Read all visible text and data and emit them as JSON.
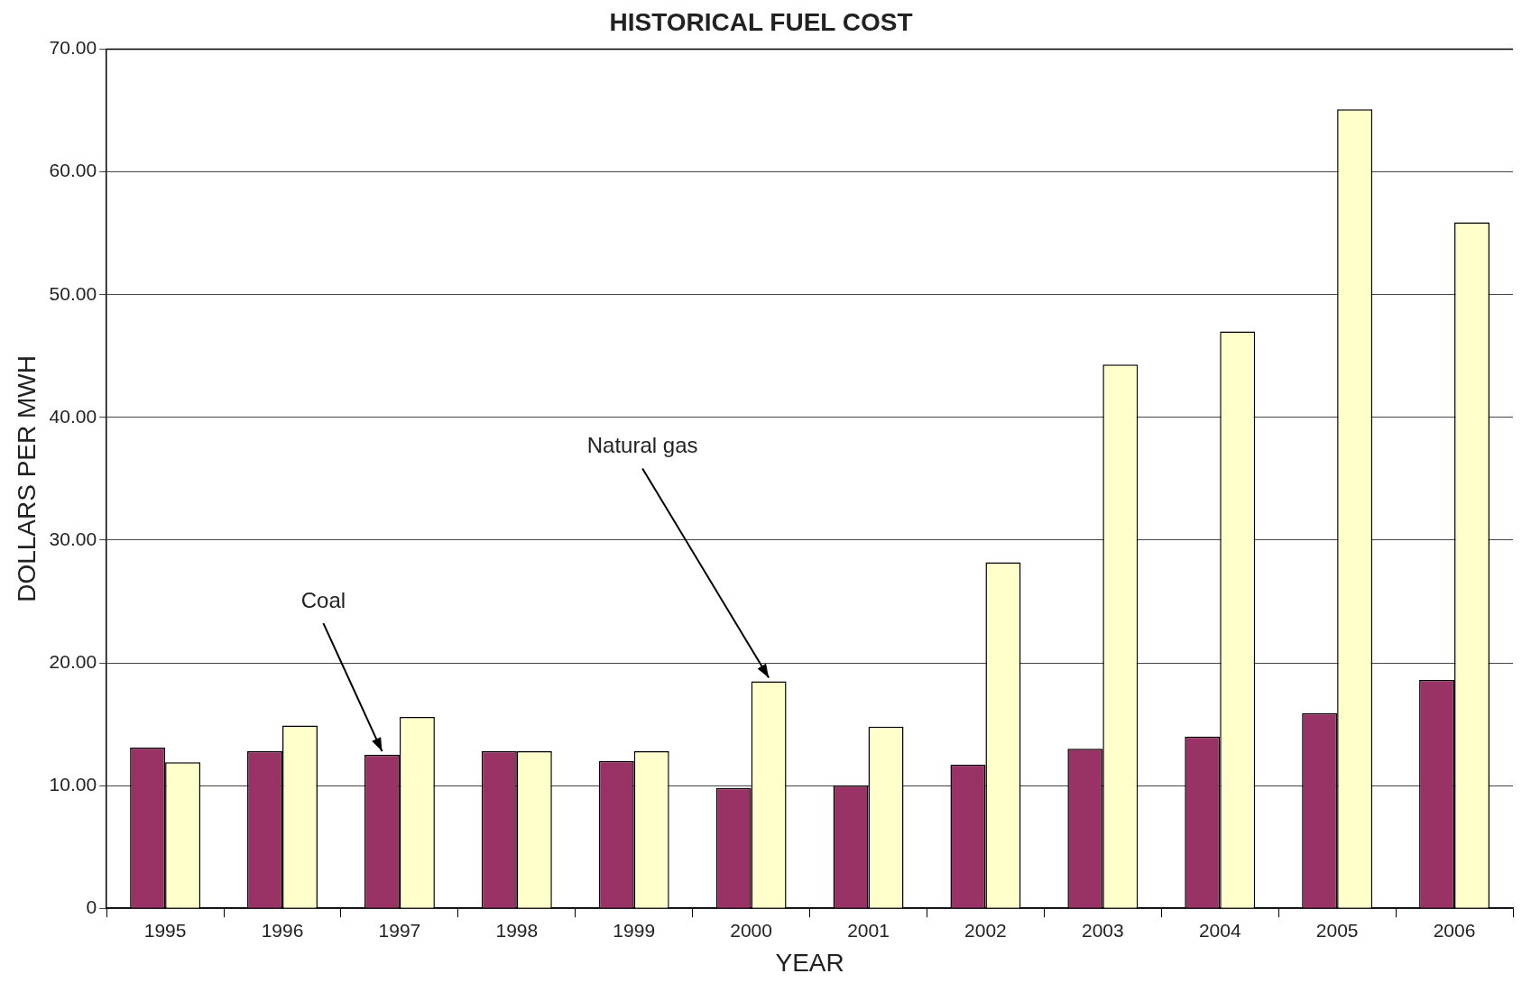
{
  "chart_data": {
    "type": "bar",
    "title": "HISTORICAL FUEL COST",
    "xlabel": "YEAR",
    "ylabel": "DOLLARS PER MWH",
    "categories": [
      "1995",
      "1996",
      "1997",
      "1998",
      "1999",
      "2000",
      "2001",
      "2002",
      "2003",
      "2004",
      "2005",
      "2006"
    ],
    "series": [
      {
        "name": "Coal",
        "color": "#993366",
        "values": [
          13.1,
          12.8,
          12.5,
          12.8,
          12.0,
          9.8,
          10.0,
          11.7,
          13.0,
          14.0,
          15.9,
          18.6
        ]
      },
      {
        "name": "Natural gas",
        "color": "#ffffcc",
        "values": [
          11.9,
          14.9,
          15.6,
          12.8,
          12.8,
          18.5,
          14.8,
          28.2,
          44.3,
          47.0,
          65.1,
          55.9
        ]
      }
    ],
    "ylim": [
      0,
      70
    ],
    "yticks": [
      0,
      {
        "value": 10,
        "label": "10.00"
      },
      {
        "value": 20,
        "label": "20.00"
      },
      {
        "value": 30,
        "label": "30.00"
      },
      {
        "value": 40,
        "label": "40.00"
      },
      {
        "value": 50,
        "label": "50.00"
      },
      {
        "value": 60,
        "label": "60.00"
      },
      {
        "value": 70,
        "label": "70.00"
      }
    ],
    "grid": "y"
  }
}
